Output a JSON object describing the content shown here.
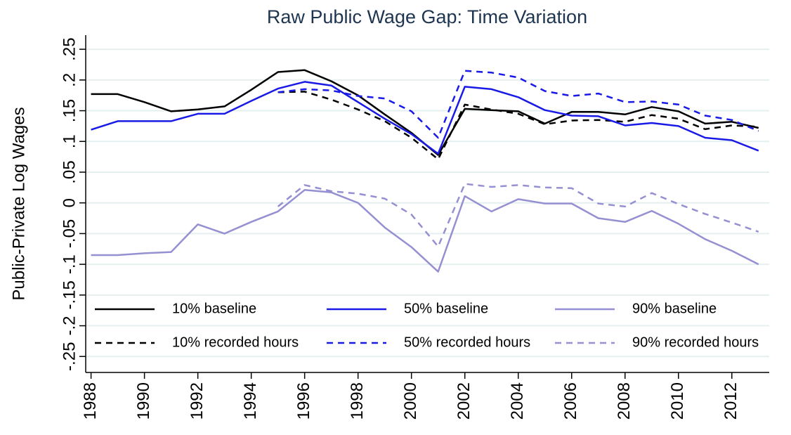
{
  "chart_data": {
    "type": "line",
    "title": "Raw Public Wage Gap: Time Variation",
    "y_label": "Public-Private Log Wages",
    "x": [
      1988,
      1989,
      1990,
      1991,
      1992,
      1993,
      1994,
      1995,
      1996,
      1997,
      1998,
      1999,
      2000,
      2001,
      2002,
      2003,
      2004,
      2005,
      2006,
      2007,
      2008,
      2009,
      2010,
      2011,
      2012,
      2013
    ],
    "series": [
      {
        "name": "10% baseline",
        "color": "#000000",
        "dash": false,
        "values": [
          0.177,
          0.177,
          0.164,
          0.149,
          0.152,
          0.157,
          0.184,
          0.213,
          0.216,
          0.198,
          0.175,
          0.144,
          0.114,
          0.078,
          0.153,
          0.151,
          0.149,
          0.129,
          0.148,
          0.148,
          0.144,
          0.156,
          0.149,
          0.129,
          0.132,
          0.122
        ]
      },
      {
        "name": "10% recorded hours",
        "color": "#000000",
        "dash": true,
        "values": [
          null,
          null,
          null,
          null,
          null,
          null,
          null,
          0.18,
          0.181,
          0.168,
          0.152,
          0.133,
          0.106,
          0.071,
          0.16,
          0.152,
          0.145,
          0.128,
          0.134,
          0.135,
          0.132,
          0.143,
          0.137,
          0.12,
          0.126,
          0.124
        ]
      },
      {
        "name": "50% baseline",
        "color": "#1a1ae6",
        "dash": false,
        "values": [
          0.119,
          0.133,
          0.133,
          0.133,
          0.145,
          0.145,
          0.166,
          0.186,
          0.197,
          0.191,
          0.164,
          0.137,
          0.112,
          0.08,
          0.189,
          0.185,
          0.172,
          0.151,
          0.142,
          0.141,
          0.126,
          0.13,
          0.125,
          0.106,
          0.102,
          0.085
        ]
      },
      {
        "name": "50% recorded hours",
        "color": "#1a1ae6",
        "dash": true,
        "values": [
          null,
          null,
          null,
          null,
          null,
          null,
          null,
          0.18,
          0.185,
          0.183,
          0.174,
          0.17,
          0.149,
          0.106,
          0.215,
          0.212,
          0.204,
          0.182,
          0.174,
          0.178,
          0.164,
          0.165,
          0.16,
          0.142,
          0.135,
          0.117
        ]
      },
      {
        "name": "90% baseline",
        "color": "#9590d2",
        "dash": false,
        "values": [
          -0.085,
          -0.085,
          -0.082,
          -0.08,
          -0.035,
          -0.05,
          -0.031,
          -0.014,
          0.021,
          0.017,
          0.0,
          -0.04,
          -0.072,
          -0.112,
          0.011,
          -0.014,
          0.006,
          -0.001,
          -0.001,
          -0.025,
          -0.031,
          -0.013,
          -0.034,
          -0.059,
          -0.078,
          -0.1
        ]
      },
      {
        "name": "90% recorded hours",
        "color": "#9590d2",
        "dash": true,
        "values": [
          null,
          null,
          null,
          null,
          null,
          null,
          null,
          -0.006,
          0.029,
          0.019,
          0.015,
          0.007,
          -0.019,
          -0.071,
          0.031,
          0.026,
          0.029,
          0.025,
          0.024,
          -0.001,
          -0.006,
          0.016,
          -0.002,
          -0.018,
          -0.032,
          -0.047
        ]
      }
    ],
    "xlim": [
      1987.8,
      2013.4
    ],
    "xticks": [
      1988,
      1990,
      1992,
      1994,
      1996,
      1998,
      2000,
      2002,
      2004,
      2006,
      2008,
      2010,
      2012
    ],
    "ylim": [
      -0.276,
      0.273
    ],
    "yticks": [
      {
        "value": 0.25,
        "label": ".25"
      },
      {
        "value": 0.2,
        "label": ".2"
      },
      {
        "value": 0.15,
        "label": ".15"
      },
      {
        "value": 0.1,
        "label": ".1"
      },
      {
        "value": 0.05,
        "label": ".05"
      },
      0,
      {
        "value": -0.05,
        "label": "-.05"
      },
      {
        "value": -0.1,
        "label": "-.1"
      },
      {
        "value": -0.15,
        "label": "-.15"
      },
      {
        "value": -0.2,
        "label": "-.2"
      },
      {
        "value": -0.25,
        "label": "-.25"
      }
    ],
    "grid": true
  }
}
